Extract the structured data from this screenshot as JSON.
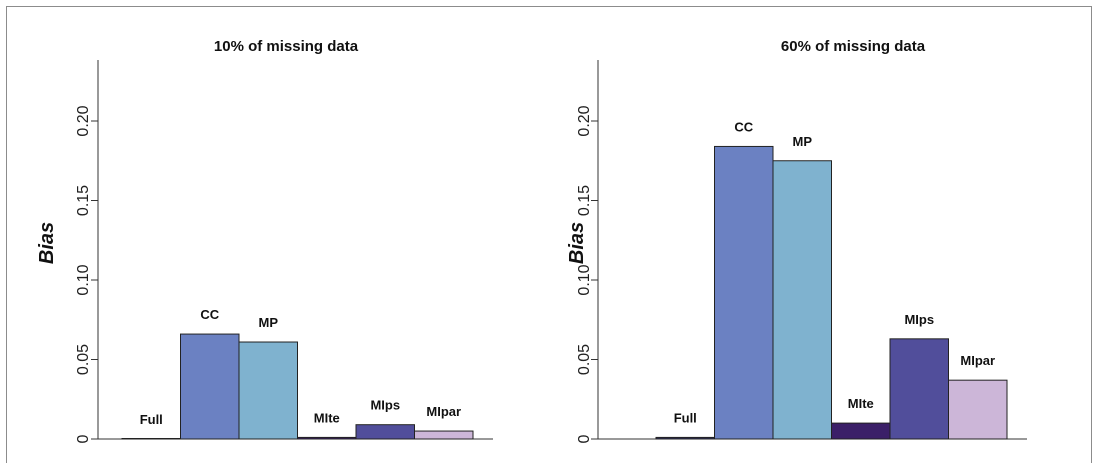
{
  "colors": {
    "Full": "#2e2e5e",
    "CC": "#6b81c2",
    "MP": "#7fb2cf",
    "MIte": "#3b1f68",
    "MIps": "#514e9b",
    "MIpar": "#ccb6d8"
  },
  "chart_data": [
    {
      "type": "bar",
      "title": "10% of missing data",
      "ylabel": "Bias",
      "xlabel": "",
      "ylim": [
        0,
        0.24
      ],
      "yticks": [
        0,
        0.05,
        0.1,
        0.15,
        0.2
      ],
      "ytick_labels": [
        "0",
        "0.05",
        "0.10",
        "0.15",
        "0.20"
      ],
      "grid": false,
      "categories": [
        "Full",
        "CC",
        "MP",
        "MIte",
        "MIps",
        "MIpar"
      ],
      "values": [
        0.0,
        0.066,
        0.061,
        0.001,
        0.009,
        0.005
      ]
    },
    {
      "type": "bar",
      "title": "60% of missing data",
      "ylabel": "Bias",
      "xlabel": "",
      "ylim": [
        0,
        0.24
      ],
      "yticks": [
        0,
        0.05,
        0.1,
        0.15,
        0.2
      ],
      "ytick_labels": [
        "0",
        "0.05",
        "0.10",
        "0.15",
        "0.20"
      ],
      "grid": false,
      "categories": [
        "Full",
        "CC",
        "MP",
        "MIte",
        "MIps",
        "MIpar"
      ],
      "values": [
        0.001,
        0.184,
        0.175,
        0.01,
        0.063,
        0.037
      ]
    }
  ]
}
